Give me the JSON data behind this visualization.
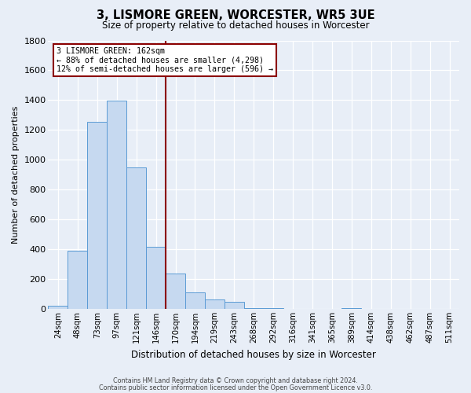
{
  "title": "3, LISMORE GREEN, WORCESTER, WR5 3UE",
  "subtitle": "Size of property relative to detached houses in Worcester",
  "xlabel": "Distribution of detached houses by size in Worcester",
  "ylabel": "Number of detached properties",
  "bar_labels": [
    "24sqm",
    "48sqm",
    "73sqm",
    "97sqm",
    "121sqm",
    "146sqm",
    "170sqm",
    "194sqm",
    "219sqm",
    "243sqm",
    "268sqm",
    "292sqm",
    "316sqm",
    "341sqm",
    "365sqm",
    "389sqm",
    "414sqm",
    "438sqm",
    "462sqm",
    "487sqm",
    "511sqm"
  ],
  "bar_values": [
    22,
    390,
    1255,
    1395,
    950,
    415,
    235,
    110,
    65,
    50,
    5,
    5,
    0,
    0,
    0,
    5,
    0,
    0,
    0,
    0,
    0
  ],
  "bar_color": "#c6d9f0",
  "bar_edge_color": "#5b9bd5",
  "property_line_color": "#8b0000",
  "annotation_title": "3 LISMORE GREEN: 162sqm",
  "annotation_line1": "← 88% of detached houses are smaller (4,298)",
  "annotation_line2": "12% of semi-detached houses are larger (596) →",
  "annotation_box_color": "#8b0000",
  "ylim": [
    0,
    1800
  ],
  "yticks": [
    0,
    200,
    400,
    600,
    800,
    1000,
    1200,
    1400,
    1600,
    1800
  ],
  "footer_line1": "Contains HM Land Registry data © Crown copyright and database right 2024.",
  "footer_line2": "Contains public sector information licensed under the Open Government Licence v3.0.",
  "bg_color": "#e8eef7",
  "plot_bg_color": "#e8eef7"
}
